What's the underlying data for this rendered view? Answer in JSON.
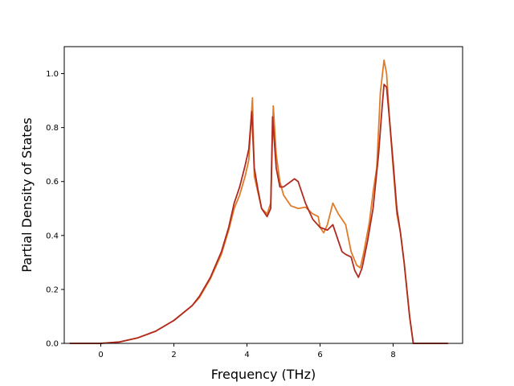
{
  "chart_data": {
    "type": "line",
    "xlabel": "Frequency (THz)",
    "ylabel": "Partial Density of States",
    "xlim": [
      -1.0,
      9.9
    ],
    "ylim": [
      0.0,
      1.1
    ],
    "xticks": [
      0,
      2,
      4,
      6,
      8
    ],
    "yticks": [
      0.0,
      0.2,
      0.4,
      0.6,
      0.8,
      1.0
    ],
    "xtick_labels": [
      "0",
      "2",
      "4",
      "6",
      "8"
    ],
    "ytick_labels": [
      "0.0",
      "0.2",
      "0.4",
      "0.6",
      "0.8",
      "1.0"
    ],
    "grid": false,
    "series": [
      {
        "color": "#e07b28",
        "points": [
          [
            -0.85,
            0.0
          ],
          [
            0.0,
            0.0
          ],
          [
            0.5,
            0.005
          ],
          [
            1.0,
            0.02
          ],
          [
            1.5,
            0.045
          ],
          [
            2.0,
            0.085
          ],
          [
            2.5,
            0.14
          ],
          [
            2.7,
            0.17
          ],
          [
            3.0,
            0.24
          ],
          [
            3.3,
            0.33
          ],
          [
            3.5,
            0.42
          ],
          [
            3.65,
            0.5
          ],
          [
            3.8,
            0.55
          ],
          [
            3.95,
            0.62
          ],
          [
            4.05,
            0.68
          ],
          [
            4.15,
            0.91
          ],
          [
            4.2,
            0.62
          ],
          [
            4.3,
            0.56
          ],
          [
            4.4,
            0.5
          ],
          [
            4.55,
            0.48
          ],
          [
            4.65,
            0.52
          ],
          [
            4.72,
            0.88
          ],
          [
            4.8,
            0.7
          ],
          [
            4.9,
            0.6
          ],
          [
            5.0,
            0.55
          ],
          [
            5.2,
            0.51
          ],
          [
            5.4,
            0.5
          ],
          [
            5.6,
            0.505
          ],
          [
            5.8,
            0.48
          ],
          [
            5.95,
            0.47
          ],
          [
            6.0,
            0.43
          ],
          [
            6.1,
            0.41
          ],
          [
            6.2,
            0.44
          ],
          [
            6.35,
            0.52
          ],
          [
            6.5,
            0.48
          ],
          [
            6.7,
            0.44
          ],
          [
            6.85,
            0.34
          ],
          [
            7.0,
            0.29
          ],
          [
            7.1,
            0.28
          ],
          [
            7.2,
            0.34
          ],
          [
            7.35,
            0.45
          ],
          [
            7.45,
            0.56
          ],
          [
            7.55,
            0.65
          ],
          [
            7.65,
            0.93
          ],
          [
            7.75,
            1.05
          ],
          [
            7.82,
            1.0
          ],
          [
            7.9,
            0.83
          ],
          [
            8.0,
            0.65
          ],
          [
            8.1,
            0.48
          ],
          [
            8.2,
            0.41
          ],
          [
            8.3,
            0.3
          ],
          [
            8.45,
            0.1
          ],
          [
            8.55,
            0.0
          ],
          [
            9.5,
            0.0
          ]
        ]
      },
      {
        "color": "#b02a20",
        "points": [
          [
            -0.85,
            0.0
          ],
          [
            0.0,
            0.0
          ],
          [
            0.5,
            0.005
          ],
          [
            1.0,
            0.02
          ],
          [
            1.5,
            0.045
          ],
          [
            2.0,
            0.085
          ],
          [
            2.5,
            0.14
          ],
          [
            2.7,
            0.175
          ],
          [
            3.0,
            0.245
          ],
          [
            3.3,
            0.34
          ],
          [
            3.5,
            0.43
          ],
          [
            3.65,
            0.52
          ],
          [
            3.8,
            0.58
          ],
          [
            3.95,
            0.66
          ],
          [
            4.05,
            0.72
          ],
          [
            4.13,
            0.86
          ],
          [
            4.2,
            0.65
          ],
          [
            4.3,
            0.57
          ],
          [
            4.4,
            0.5
          ],
          [
            4.55,
            0.47
          ],
          [
            4.65,
            0.5
          ],
          [
            4.7,
            0.84
          ],
          [
            4.8,
            0.65
          ],
          [
            4.9,
            0.58
          ],
          [
            5.0,
            0.58
          ],
          [
            5.2,
            0.6
          ],
          [
            5.3,
            0.61
          ],
          [
            5.4,
            0.6
          ],
          [
            5.6,
            0.52
          ],
          [
            5.8,
            0.46
          ],
          [
            6.0,
            0.43
          ],
          [
            6.2,
            0.42
          ],
          [
            6.35,
            0.44
          ],
          [
            6.5,
            0.38
          ],
          [
            6.6,
            0.34
          ],
          [
            6.7,
            0.33
          ],
          [
            6.85,
            0.32
          ],
          [
            6.95,
            0.27
          ],
          [
            7.05,
            0.245
          ],
          [
            7.15,
            0.28
          ],
          [
            7.3,
            0.38
          ],
          [
            7.45,
            0.5
          ],
          [
            7.6,
            0.7
          ],
          [
            7.7,
            0.88
          ],
          [
            7.75,
            0.96
          ],
          [
            7.82,
            0.95
          ],
          [
            7.9,
            0.83
          ],
          [
            8.0,
            0.67
          ],
          [
            8.1,
            0.5
          ],
          [
            8.2,
            0.41
          ],
          [
            8.3,
            0.3
          ],
          [
            8.45,
            0.1
          ],
          [
            8.55,
            0.0
          ],
          [
            9.5,
            0.0
          ]
        ]
      }
    ]
  }
}
